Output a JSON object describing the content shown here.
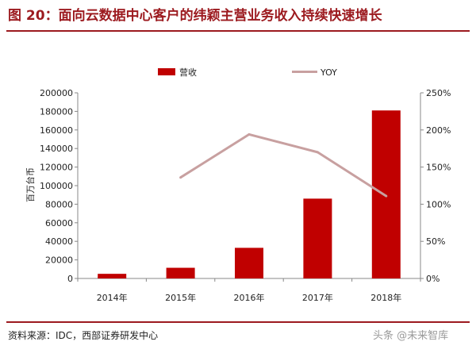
{
  "title": "图 20：面向云数据中心客户的纬颖主营业务收入持续快速增长",
  "source": "资料来源：IDC，西部证券研发中心",
  "watermark": "头条 @未来智库",
  "colors": {
    "bar": "#c00000",
    "line": "#c8a0a0",
    "accent": "#9c1a1f"
  },
  "chart_data": {
    "type": "bar",
    "categories": [
      "2014年",
      "2015年",
      "2016年",
      "2017年",
      "2018年"
    ],
    "series": [
      {
        "name": "营收",
        "type": "bar",
        "axis": "left",
        "values": [
          5000,
          11500,
          33000,
          86000,
          181000
        ]
      },
      {
        "name": "YOY",
        "type": "line",
        "axis": "right",
        "values": [
          null,
          1.36,
          1.94,
          1.7,
          1.11
        ]
      }
    ],
    "ylabel": "百万台币",
    "ylim": [
      0,
      200000
    ],
    "yticks": [
      "0",
      "20000",
      "40000",
      "60000",
      "80000",
      "100000",
      "120000",
      "140000",
      "160000",
      "180000",
      "200000"
    ],
    "y2lim": [
      0,
      2.5
    ],
    "y2ticks": [
      "0%",
      "50%",
      "100%",
      "150%",
      "200%",
      "250%"
    ],
    "legend": "top-center",
    "grid": false
  }
}
